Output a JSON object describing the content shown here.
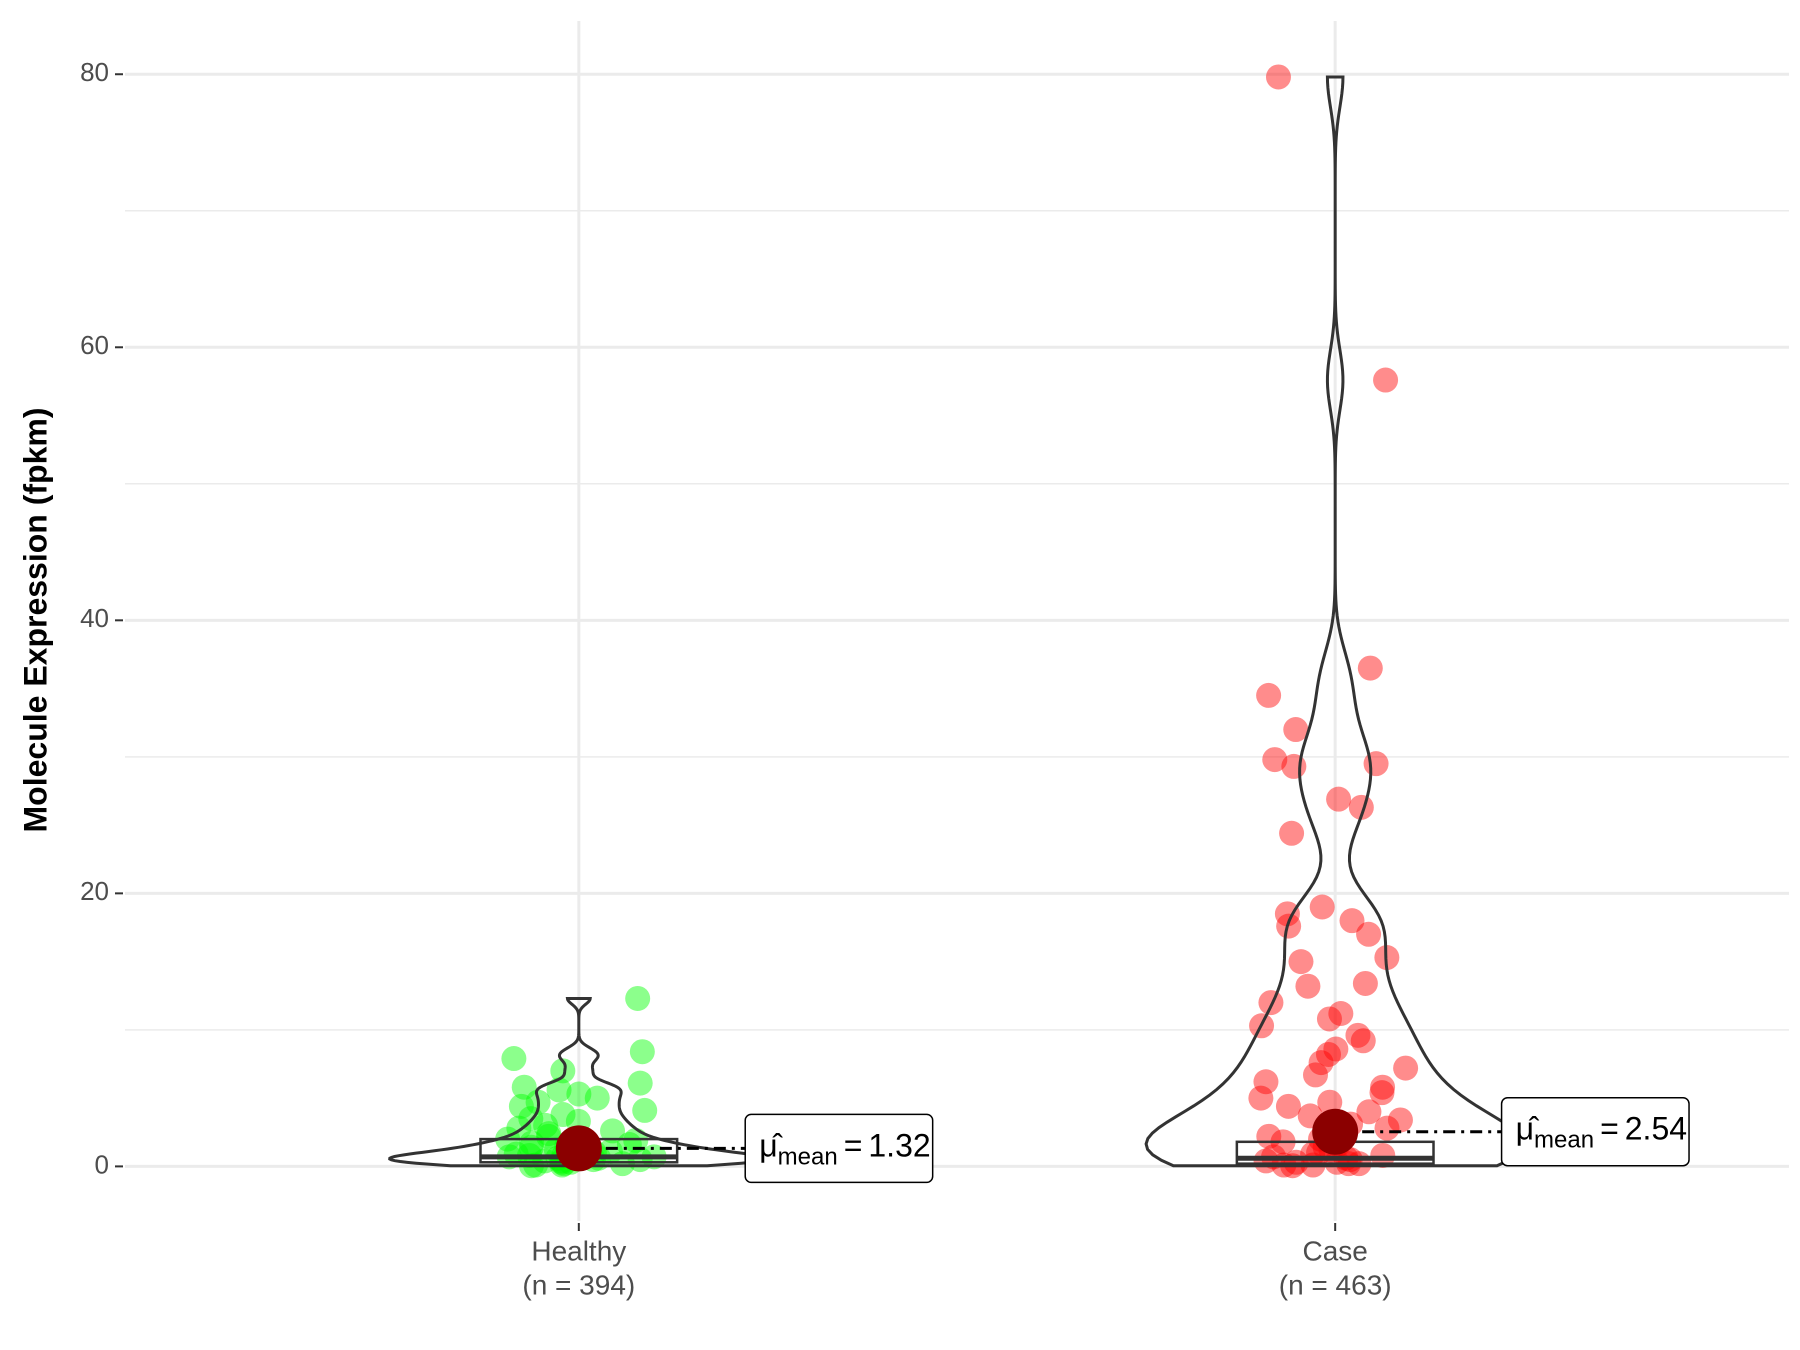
{
  "chart_data": {
    "type": "violin",
    "y_label": "Molecule Expression (fpkm)",
    "categories": [
      "Healthy",
      "Case"
    ],
    "count_labels": [
      "(n = 394)",
      "(n = 463)"
    ],
    "colors": [
      "#00ff00",
      "#ff0000"
    ],
    "points": [
      [
        12.3,
        8.4,
        7.9,
        7.0,
        6.1,
        5.8,
        5.6,
        5.3,
        5.0,
        4.7,
        4.4,
        4.1,
        3.8,
        3.5,
        3.3,
        3.0,
        2.8,
        2.6,
        2.4,
        2.2,
        2.0,
        1.9,
        1.7,
        1.6,
        1.5,
        1.4,
        1.3,
        1.2,
        1.1,
        1.0,
        0.9,
        0.8,
        0.8,
        0.7,
        0.7,
        0.6,
        0.6,
        0.5,
        0.5,
        0.4,
        0.4,
        0.3,
        0.3,
        0.2,
        0.2,
        0.1,
        0.1,
        0.05
      ],
      [
        79.8,
        57.6,
        36.5,
        34.5,
        32.0,
        29.8,
        29.5,
        29.3,
        26.9,
        26.3,
        24.4,
        19.0,
        18.5,
        18.0,
        17.6,
        17.0,
        15.3,
        15.0,
        13.4,
        13.2,
        12.0,
        11.2,
        10.8,
        10.3,
        9.6,
        9.2,
        8.6,
        8.2,
        7.6,
        7.2,
        6.7,
        6.2,
        5.8,
        5.4,
        5.0,
        4.7,
        4.4,
        4.0,
        3.7,
        3.4,
        3.1,
        2.8,
        2.5,
        2.2,
        2.0,
        1.8,
        1.6,
        1.4,
        1.2,
        1.0,
        0.9,
        0.8,
        0.7,
        0.6,
        0.5,
        0.4,
        0.3,
        0.3,
        0.2,
        0.2,
        0.1,
        0.1,
        0.05
      ]
    ],
    "q1": [
      0.3,
      0.2
    ],
    "median": [
      0.7,
      0.6
    ],
    "q3": [
      2.0,
      1.8
    ],
    "means": [
      1.32,
      2.54
    ],
    "mean_symbol": "μ̂",
    "mean_subscript": "mean",
    "mean_equals": "=",
    "mean_color": "#8b0000",
    "ylim": [
      -4.0,
      83.9
    ],
    "yticks": [
      0,
      20,
      40,
      60,
      80
    ],
    "minor_grid": [
      10,
      30,
      50,
      70
    ],
    "grid": true
  }
}
